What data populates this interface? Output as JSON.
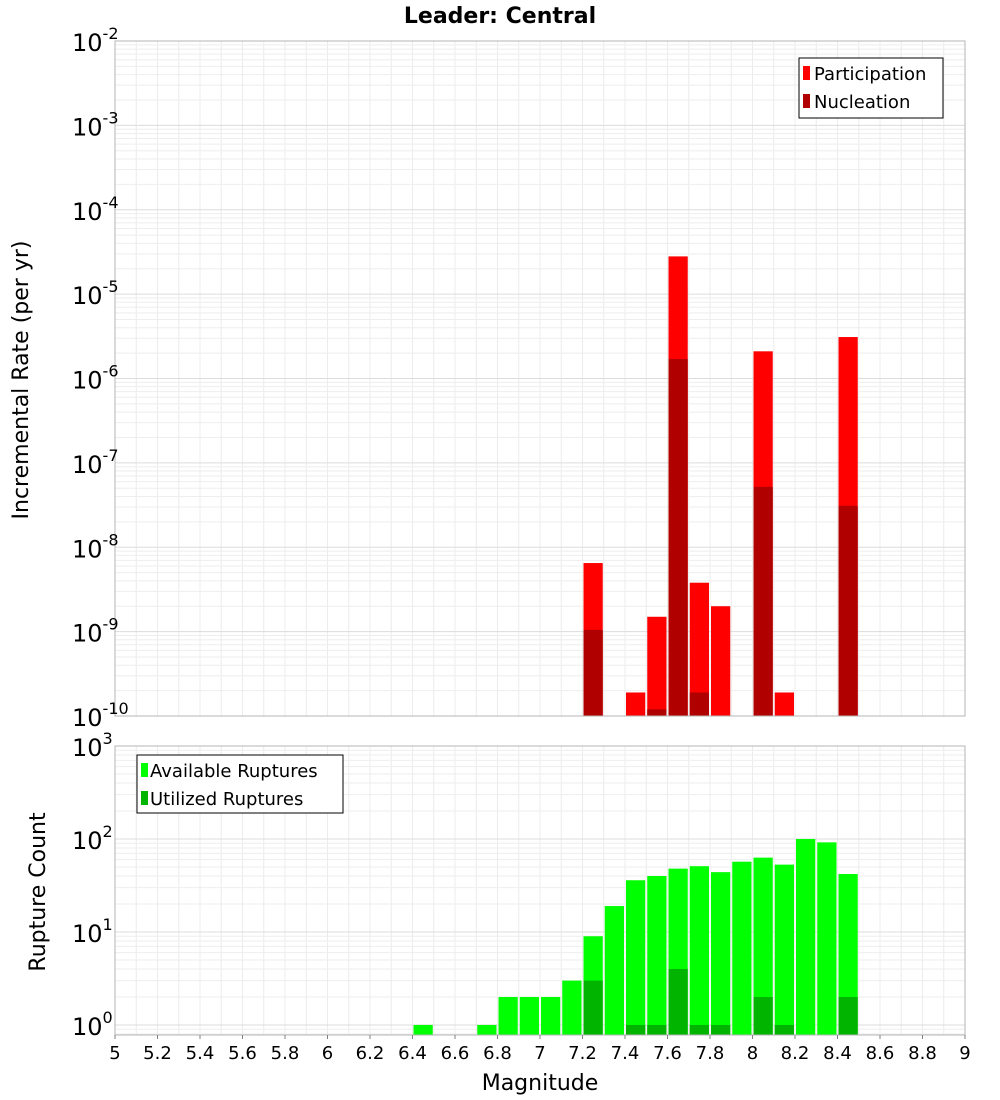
{
  "chart_data": [
    {
      "type": "bar",
      "title": "Leader: Central",
      "xlabel": "",
      "ylabel": "Incremental Rate (per yr)",
      "yscale": "log",
      "ylim": [
        1e-10,
        0.01
      ],
      "xlim": [
        5,
        9
      ],
      "bar_width": 0.1,
      "y_ticks": [
        {
          "base": "10",
          "exp": "-2"
        },
        {
          "base": "10",
          "exp": "-3"
        },
        {
          "base": "10",
          "exp": "-4"
        },
        {
          "base": "10",
          "exp": "-5"
        },
        {
          "base": "10",
          "exp": "-6"
        },
        {
          "base": "10",
          "exp": "-7"
        },
        {
          "base": "10",
          "exp": "-8"
        },
        {
          "base": "10",
          "exp": "-9"
        },
        {
          "base": "10",
          "exp": "-10"
        }
      ],
      "legend_position": "top-right",
      "grid": true,
      "series": [
        {
          "name": "Participation",
          "color": "#ff0000",
          "x": [
            7.25,
            7.45,
            7.55,
            7.65,
            7.75,
            7.85,
            8.05,
            8.15,
            8.45
          ],
          "values": [
            6.5e-09,
            1.9e-10,
            1.5e-09,
            2.8e-05,
            3.8e-09,
            2e-09,
            2.1e-06,
            1.9e-10,
            3.1e-06
          ]
        },
        {
          "name": "Nucleation",
          "color": "#b00000",
          "x": [
            7.25,
            7.55,
            7.65,
            7.75,
            8.05,
            8.45
          ],
          "values": [
            1.05e-09,
            1.2e-10,
            1.7e-06,
            1.9e-10,
            5.2e-08,
            3.1e-08
          ]
        }
      ]
    },
    {
      "type": "bar",
      "title": "",
      "xlabel": "Magnitude",
      "ylabel": "Rupture Count",
      "yscale": "log",
      "ylim": [
        0.78,
        1000
      ],
      "xlim": [
        5,
        9
      ],
      "bar_width": 0.1,
      "y_ticks": [
        {
          "base": "10",
          "exp": "3",
          "value": 1000
        },
        {
          "base": "10",
          "exp": "2",
          "value": 100
        },
        {
          "base": "10",
          "exp": "1",
          "value": 10
        },
        {
          "base": "10",
          "exp": "0",
          "value": 1
        }
      ],
      "x_ticks": [
        "5",
        "5.2",
        "5.4",
        "5.6",
        "5.8",
        "6",
        "6.2",
        "6.4",
        "6.6",
        "6.8",
        "7",
        "7.2",
        "7.4",
        "7.6",
        "7.8",
        "8",
        "8.2",
        "8.4",
        "8.6",
        "8.8",
        "9"
      ],
      "legend_position": "top-left",
      "grid": true,
      "series": [
        {
          "name": "Available Ruptures",
          "color": "#00ff00",
          "x": [
            6.45,
            6.75,
            6.85,
            6.95,
            7.05,
            7.15,
            7.25,
            7.35,
            7.45,
            7.55,
            7.65,
            7.75,
            7.85,
            7.95,
            8.05,
            8.15,
            8.25,
            8.35,
            8.45
          ],
          "values": [
            1,
            1,
            2,
            2,
            2,
            3,
            9,
            19,
            36,
            40,
            48,
            51,
            44,
            57,
            63,
            53,
            100,
            92,
            42
          ]
        },
        {
          "name": "Utilized Ruptures",
          "color": "#00b400",
          "x": [
            7.25,
            7.45,
            7.55,
            7.65,
            7.75,
            7.85,
            8.05,
            8.15,
            8.45
          ],
          "values": [
            3,
            1,
            1,
            4,
            1,
            1,
            2,
            1,
            2
          ]
        }
      ]
    }
  ]
}
